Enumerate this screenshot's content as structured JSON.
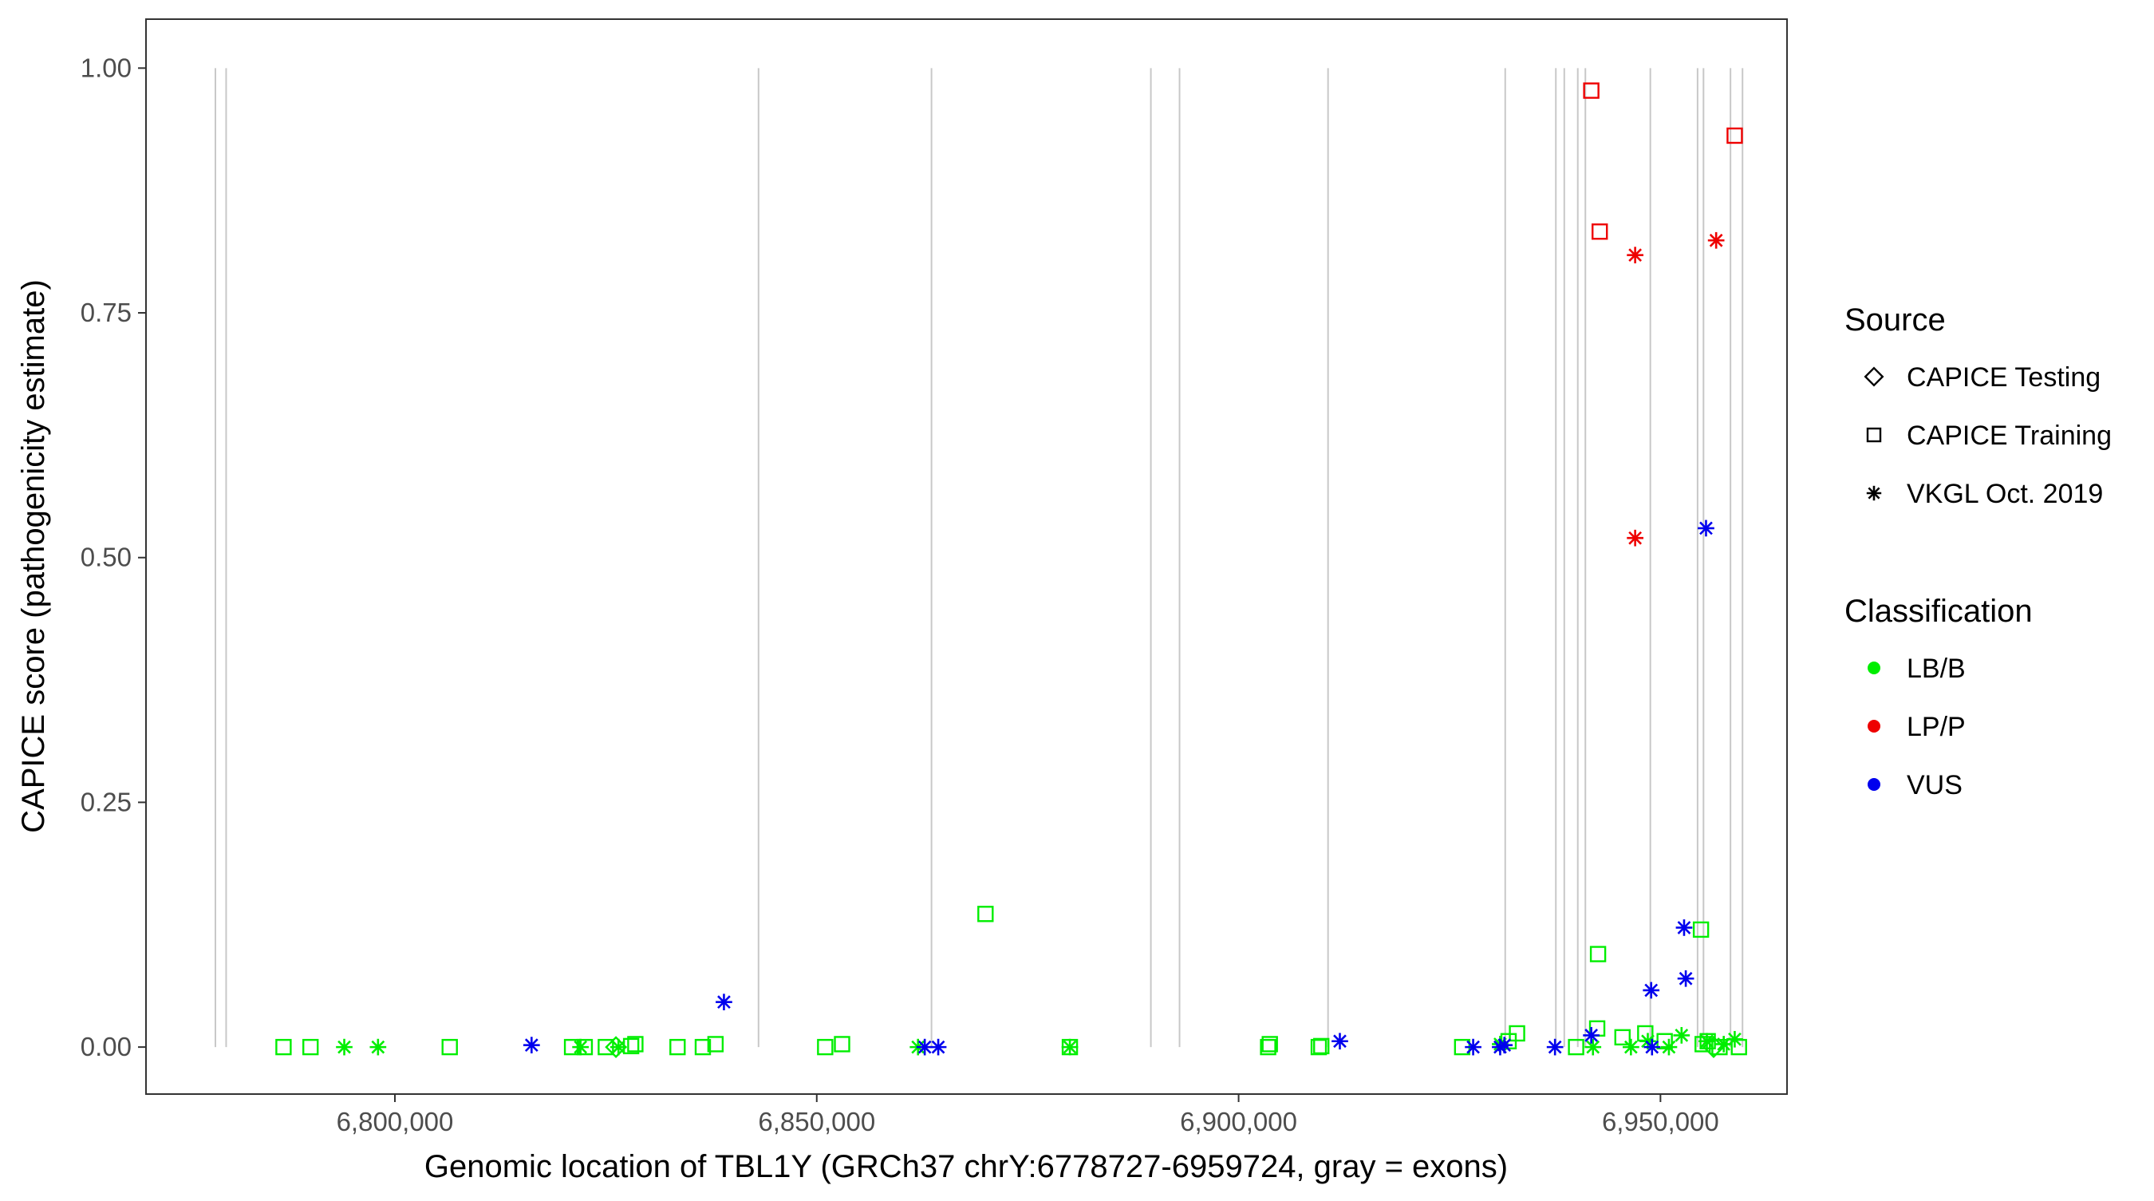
{
  "chart_data": {
    "type": "scatter",
    "title": "",
    "xlabel": "Genomic location of TBL1Y (GRCh37 chrY:6778727-6959724, gray = exons)",
    "ylabel": "CAPICE score (pathogenicity estimate)",
    "xlim": [
      6770500,
      6965000
    ],
    "ylim": [
      -0.048,
      1.05
    ],
    "x_ticks": [
      6800000,
      6850000,
      6900000,
      6950000
    ],
    "x_tick_labels": [
      "6,800,000",
      "6,850,000",
      "6,900,000",
      "6,950,000"
    ],
    "y_ticks": [
      0.0,
      0.25,
      0.5,
      0.75,
      1.0
    ],
    "y_tick_labels": [
      "0.00",
      "0.25",
      "0.50",
      "0.75",
      "1.00"
    ],
    "grid": false,
    "exon_color": "#c8c8c8",
    "exon_lines": [
      6778727,
      6780000,
      6843100,
      6863600,
      6889600,
      6893000,
      6910600,
      6931600,
      6937600,
      6938600,
      6940200,
      6941100,
      6948800,
      6954400,
      6955100,
      6958300,
      6959724
    ],
    "legend_position": "right",
    "legend": {
      "source_title": "Source",
      "sources": [
        {
          "name": "CAPICE Testing",
          "shape": "diamond"
        },
        {
          "name": "CAPICE Training",
          "shape": "square"
        },
        {
          "name": "VKGL Oct. 2019",
          "shape": "asterisk"
        }
      ],
      "classification_title": "Classification",
      "classes": [
        {
          "name": "LB/B",
          "color": "#00ee00"
        },
        {
          "name": "LP/P",
          "color": "#ee0000"
        },
        {
          "name": "VUS",
          "color": "#0000ee"
        }
      ]
    },
    "colors": {
      "LB/B": "#00ee00",
      "LP/P": "#ee0000",
      "VUS": "#0000ee"
    },
    "series": [
      {
        "name": "CAPICE Training",
        "shape": "square",
        "class": "LB/B",
        "x": [
          6786800,
          6790000,
          6806500,
          6821000,
          6822500,
          6825000,
          6828000,
          6828500,
          6833500,
          6836500,
          6838000,
          6851000,
          6853000,
          6870000,
          6880000,
          6903500,
          6903700,
          6909500,
          6909800,
          6926500,
          6932000,
          6933000,
          6940000,
          6942500,
          6942600,
          6945500,
          6948200,
          6950500,
          6954800,
          6955000,
          6955600,
          6957000,
          6959300
        ],
        "y": [
          0.0,
          0.0,
          0.0,
          0.0,
          0.0,
          0.0,
          0.001,
          0.003,
          0.0,
          0.0,
          0.003,
          0.0,
          0.003,
          0.136,
          0.0,
          0.0,
          0.003,
          0.0,
          0.001,
          0.0,
          0.006,
          0.014,
          0.0,
          0.019,
          0.095,
          0.01,
          0.014,
          0.006,
          0.12,
          0.003,
          0.006,
          0.0,
          0.0
        ]
      },
      {
        "name": "CAPICE Training",
        "shape": "square",
        "class": "LP/P",
        "x": [
          6941800,
          6942800,
          6958800
        ],
        "y": [
          0.977,
          0.833,
          0.931
        ]
      },
      {
        "name": "VKGL Oct. 2019",
        "shape": "asterisk",
        "class": "LB/B",
        "x": [
          6794000,
          6798000,
          6822000,
          6826500,
          6862000,
          6880000,
          6931000,
          6942000,
          6946500,
          6948500,
          6951000,
          6952500,
          6955500,
          6957500,
          6958800
        ],
        "y": [
          0.0,
          0.0,
          0.0,
          0.0,
          0.0,
          0.0,
          0.003,
          0.0,
          0.0,
          0.006,
          0.0,
          0.012,
          0.006,
          0.003,
          0.008
        ]
      },
      {
        "name": "VKGL Oct. 2019",
        "shape": "asterisk",
        "class": "LP/P",
        "x": [
          6947000,
          6947000,
          6956600
        ],
        "y": [
          0.809,
          0.52,
          0.824
        ]
      },
      {
        "name": "VKGL Oct. 2019",
        "shape": "asterisk",
        "class": "VUS",
        "x": [
          6816200,
          6839000,
          6862800,
          6864400,
          6912000,
          6927800,
          6931000,
          6931500,
          6937500,
          6941800,
          6948900,
          6949000,
          6952800,
          6953000,
          6955400
        ],
        "y": [
          0.002,
          0.046,
          0.0,
          0.0,
          0.006,
          0.0,
          0.0,
          0.002,
          0.0,
          0.012,
          0.058,
          0.0,
          0.122,
          0.07,
          0.53
        ]
      },
      {
        "name": "CAPICE Testing",
        "shape": "diamond",
        "class": "LB/B",
        "x": [
          6826200,
          6956300
        ],
        "y": [
          0.0,
          0.0
        ]
      }
    ]
  }
}
